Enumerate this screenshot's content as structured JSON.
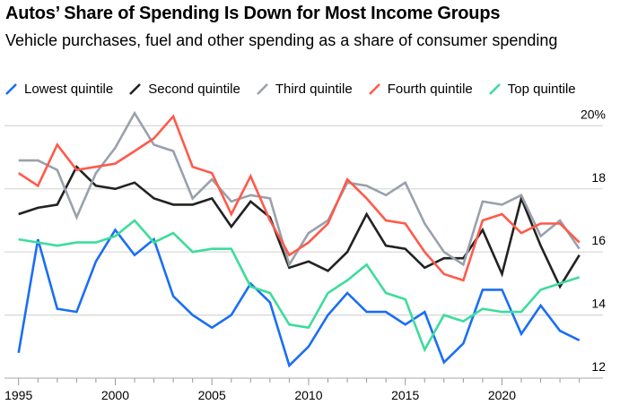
{
  "title": "Autos’ Share of Spending Is Down for Most Income Groups",
  "subtitle": "Vehicle purchases, fuel and other spending as a share of consumer spending",
  "chart_data": {
    "type": "line",
    "title": "Autos’ Share of Spending Is Down for Most Income Groups",
    "subtitle": "Vehicle purchases, fuel and other spending as a share of consumer spending",
    "x": [
      1995,
      1996,
      1997,
      1998,
      1999,
      2000,
      2001,
      2002,
      2003,
      2004,
      2005,
      2006,
      2007,
      2008,
      2009,
      2010,
      2011,
      2012,
      2013,
      2014,
      2015,
      2016,
      2017,
      2018,
      2019,
      2020,
      2021,
      2022,
      2023,
      2024
    ],
    "xticks": [
      "1995",
      "2000",
      "2005",
      "2010",
      "2015",
      "2020"
    ],
    "yticks": [
      "20%",
      "18",
      "16",
      "14",
      "12"
    ],
    "ytick_values": [
      20,
      18,
      16,
      14,
      12
    ],
    "ylim": [
      12,
      20.6
    ],
    "xlim": [
      1995,
      2024
    ],
    "grid": true,
    "legend_position": "top",
    "series": [
      {
        "name": "Lowest quintile",
        "color": "#1a6ef5",
        "values": [
          12.8,
          16.4,
          14.2,
          14.1,
          15.7,
          16.7,
          15.9,
          16.4,
          14.6,
          14.0,
          13.6,
          14.0,
          15.0,
          14.4,
          12.4,
          13.0,
          14.0,
          14.7,
          14.1,
          14.1,
          13.7,
          14.1,
          12.5,
          13.1,
          14.8,
          14.8,
          13.4,
          14.3,
          13.5,
          13.2
        ]
      },
      {
        "name": "Second quintile",
        "color": "#222222",
        "values": [
          17.2,
          17.4,
          17.5,
          18.7,
          18.1,
          18.0,
          18.2,
          17.7,
          17.5,
          17.5,
          17.7,
          16.8,
          17.6,
          17.1,
          15.5,
          15.7,
          15.4,
          16.0,
          17.2,
          16.2,
          16.1,
          15.5,
          15.8,
          15.8,
          16.7,
          15.3,
          17.7,
          16.2,
          14.9,
          15.9
        ]
      },
      {
        "name": "Third quintile",
        "color": "#9aa1ab",
        "values": [
          18.9,
          18.9,
          18.6,
          17.1,
          18.5,
          19.3,
          20.4,
          19.4,
          19.2,
          17.7,
          18.3,
          17.6,
          17.8,
          17.7,
          15.6,
          16.6,
          17.0,
          18.2,
          18.1,
          17.8,
          18.2,
          16.9,
          16.0,
          15.6,
          17.6,
          17.5,
          17.8,
          16.5,
          17.0,
          16.1
        ]
      },
      {
        "name": "Fourth quintile",
        "color": "#ff5a4a",
        "values": [
          18.5,
          18.1,
          19.4,
          18.6,
          18.7,
          18.8,
          19.2,
          19.6,
          20.3,
          18.7,
          18.5,
          17.2,
          18.4,
          17.0,
          15.9,
          16.3,
          16.9,
          18.3,
          17.7,
          17.0,
          16.9,
          16.0,
          15.3,
          15.1,
          17.0,
          17.2,
          16.6,
          16.9,
          16.9,
          16.3
        ]
      },
      {
        "name": "Top quintile",
        "color": "#3ddc9c",
        "values": [
          16.4,
          16.3,
          16.2,
          16.3,
          16.3,
          16.5,
          17.0,
          16.3,
          16.6,
          16.0,
          16.1,
          16.1,
          14.9,
          14.7,
          13.7,
          13.6,
          14.7,
          15.1,
          15.6,
          14.7,
          14.5,
          12.9,
          14.0,
          13.8,
          14.2,
          14.1,
          14.1,
          14.8,
          15.0,
          15.2
        ]
      }
    ]
  }
}
